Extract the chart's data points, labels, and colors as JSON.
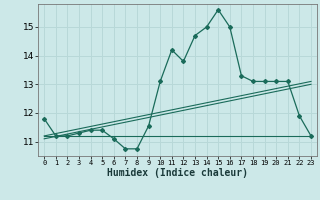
{
  "title": "",
  "xlabel": "Humidex (Indice chaleur)",
  "ylabel": "",
  "background_color": "#cce8e8",
  "grid_color": "#b8d8d8",
  "line_color": "#1a6b5a",
  "x_ticks": [
    0,
    1,
    2,
    3,
    4,
    5,
    6,
    7,
    8,
    9,
    10,
    11,
    12,
    13,
    14,
    15,
    16,
    17,
    18,
    19,
    20,
    21,
    22,
    23
  ],
  "y_ticks": [
    11,
    12,
    13,
    14,
    15
  ],
  "xlim": [
    -0.5,
    23.5
  ],
  "ylim": [
    10.5,
    15.8
  ],
  "main_x": [
    0,
    1,
    2,
    3,
    4,
    5,
    6,
    7,
    8,
    9,
    10,
    11,
    12,
    13,
    14,
    15,
    16,
    17,
    18,
    19,
    20,
    21,
    22,
    23
  ],
  "main_y": [
    11.8,
    11.2,
    11.2,
    11.3,
    11.4,
    11.4,
    11.1,
    10.75,
    10.75,
    11.55,
    13.1,
    14.2,
    13.8,
    14.7,
    15.0,
    15.6,
    15.0,
    13.3,
    13.1,
    13.1,
    13.1,
    13.1,
    11.9,
    11.2
  ],
  "line1_x": [
    0,
    23
  ],
  "line1_y": [
    11.2,
    13.1
  ],
  "line2_x": [
    0,
    23
  ],
  "line2_y": [
    11.1,
    13.0
  ],
  "line3_x": [
    0,
    23
  ],
  "line3_y": [
    11.2,
    11.2
  ]
}
